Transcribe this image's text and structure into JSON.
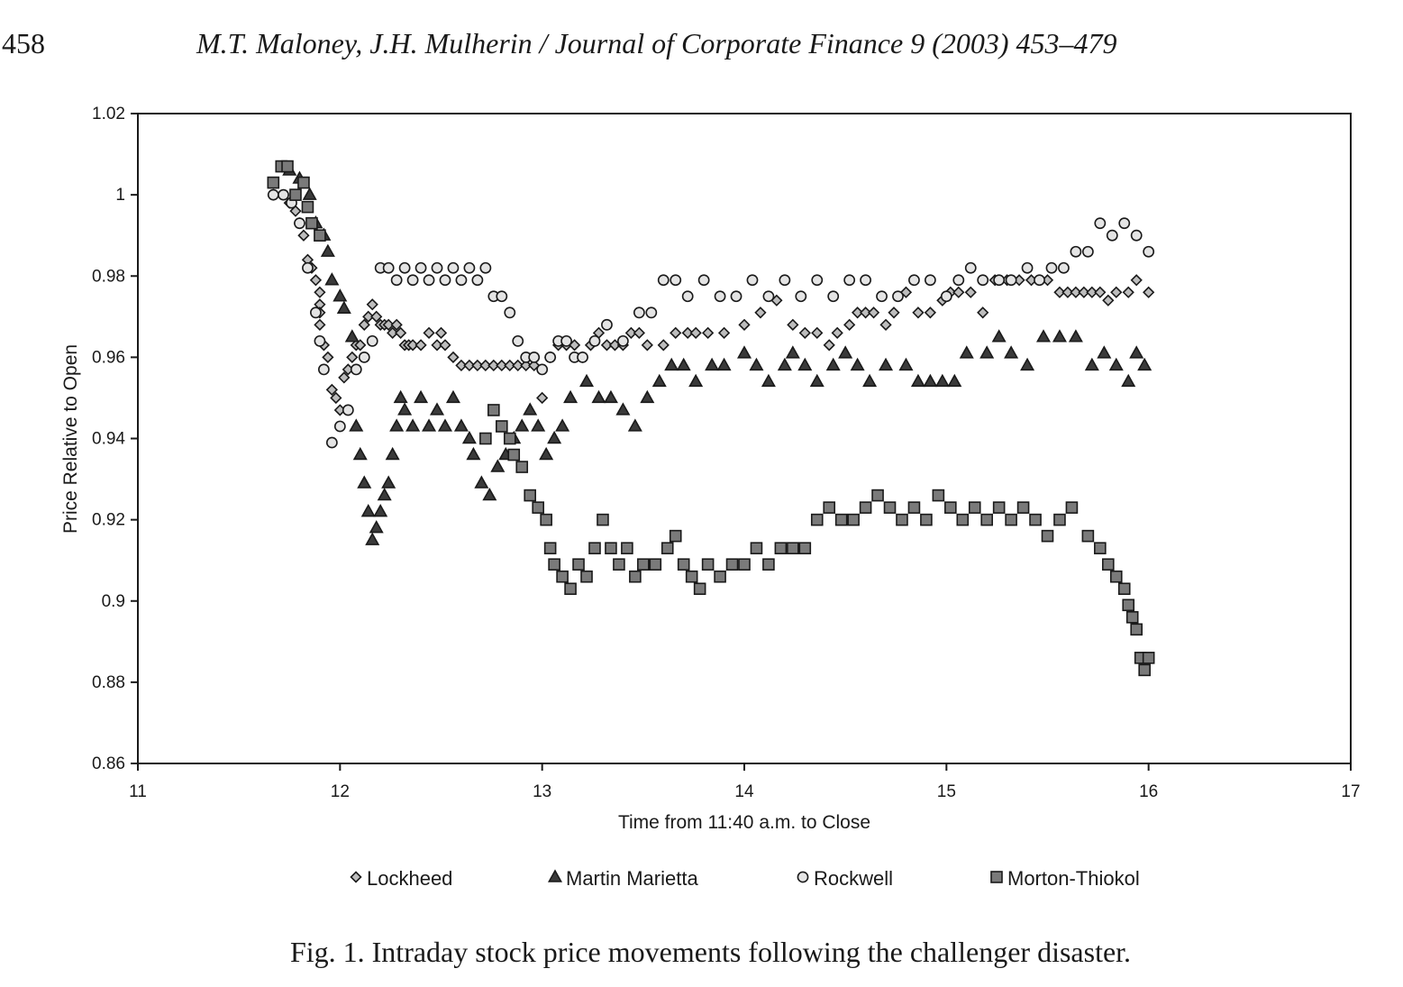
{
  "header": {
    "page_number": "458",
    "running_head": "M.T. Maloney, J.H. Mulherin / Journal of Corporate Finance 9 (2003) 453–479"
  },
  "caption": "Fig. 1. Intraday stock price movements following the challenger disaster.",
  "chart_data": {
    "type": "scatter",
    "xlabel": "Time from 11:40 a.m. to Close",
    "ylabel": "Price Relative to Open",
    "xlim": [
      11,
      17
    ],
    "ylim": [
      0.86,
      1.02
    ],
    "x_ticks": [
      "11",
      "12",
      "13",
      "14",
      "15",
      "16",
      "17"
    ],
    "y_ticks": [
      "0.86",
      "0.88",
      "0.9",
      "0.92",
      "0.94",
      "0.96",
      "0.98",
      "1",
      "1.02"
    ],
    "grid": false,
    "legend_position": "bottom",
    "series": [
      {
        "name": "Lockheed",
        "marker": "diamond",
        "x": [
          11.67,
          11.75,
          11.78,
          11.8,
          11.82,
          11.84,
          11.86,
          11.88,
          11.9,
          11.9,
          11.9,
          11.9,
          11.92,
          11.94,
          11.96,
          11.98,
          12.0,
          12.02,
          12.04,
          12.06,
          12.08,
          12.1,
          12.12,
          12.14,
          12.16,
          12.18,
          12.2,
          12.22,
          12.24,
          12.26,
          12.28,
          12.3,
          12.32,
          12.34,
          12.36,
          12.4,
          12.44,
          12.48,
          12.5,
          12.52,
          12.56,
          12.6,
          12.64,
          12.68,
          12.72,
          12.76,
          12.8,
          12.84,
          12.88,
          12.92,
          12.96,
          13.0,
          13.04,
          13.08,
          13.12,
          13.16,
          13.2,
          13.24,
          13.28,
          13.32,
          13.36,
          13.4,
          13.44,
          13.48,
          13.52,
          13.6,
          13.66,
          13.72,
          13.76,
          13.82,
          13.9,
          14.0,
          14.08,
          14.16,
          14.24,
          14.3,
          14.36,
          14.42,
          14.46,
          14.52,
          14.56,
          14.6,
          14.64,
          14.7,
          14.74,
          14.8,
          14.86,
          14.92,
          14.98,
          15.02,
          15.06,
          15.12,
          15.18,
          15.24,
          15.3,
          15.36,
          15.42,
          15.5,
          15.56,
          15.6,
          15.64,
          15.68,
          15.72,
          15.76,
          15.8,
          15.84,
          15.9,
          15.94,
          16.0
        ],
        "y": [
          1.0,
          0.998,
          0.996,
          0.993,
          0.99,
          0.984,
          0.982,
          0.979,
          0.976,
          0.973,
          0.971,
          0.968,
          0.963,
          0.96,
          0.952,
          0.95,
          0.947,
          0.955,
          0.957,
          0.96,
          0.963,
          0.963,
          0.968,
          0.97,
          0.973,
          0.97,
          0.968,
          0.968,
          0.968,
          0.966,
          0.968,
          0.966,
          0.963,
          0.963,
          0.963,
          0.963,
          0.966,
          0.963,
          0.966,
          0.963,
          0.96,
          0.958,
          0.958,
          0.958,
          0.958,
          0.958,
          0.958,
          0.958,
          0.958,
          0.958,
          0.958,
          0.95,
          0.96,
          0.963,
          0.963,
          0.963,
          0.96,
          0.963,
          0.966,
          0.963,
          0.963,
          0.963,
          0.966,
          0.966,
          0.963,
          0.963,
          0.966,
          0.966,
          0.966,
          0.966,
          0.966,
          0.968,
          0.971,
          0.974,
          0.968,
          0.966,
          0.966,
          0.963,
          0.966,
          0.968,
          0.971,
          0.971,
          0.971,
          0.968,
          0.971,
          0.976,
          0.971,
          0.971,
          0.974,
          0.976,
          0.976,
          0.976,
          0.971,
          0.979,
          0.979,
          0.979,
          0.979,
          0.979,
          0.976,
          0.976,
          0.976,
          0.976,
          0.976,
          0.976,
          0.974,
          0.976,
          0.976,
          0.979,
          0.976
        ]
      },
      {
        "name": "Martin Marietta",
        "marker": "triangle",
        "x": [
          11.75,
          11.8,
          11.85,
          11.88,
          11.92,
          11.94,
          11.96,
          12.0,
          12.02,
          12.06,
          12.08,
          12.1,
          12.12,
          12.14,
          12.16,
          12.18,
          12.2,
          12.22,
          12.24,
          12.26,
          12.28,
          12.3,
          12.32,
          12.36,
          12.4,
          12.44,
          12.48,
          12.52,
          12.56,
          12.6,
          12.64,
          12.66,
          12.7,
          12.74,
          12.78,
          12.82,
          12.86,
          12.9,
          12.94,
          12.98,
          13.02,
          13.06,
          13.1,
          13.14,
          13.22,
          13.28,
          13.34,
          13.4,
          13.46,
          13.52,
          13.58,
          13.64,
          13.7,
          13.76,
          13.84,
          13.9,
          14.0,
          14.06,
          14.12,
          14.2,
          14.24,
          14.3,
          14.36,
          14.44,
          14.5,
          14.56,
          14.62,
          14.7,
          14.8,
          14.86,
          14.92,
          14.98,
          15.04,
          15.1,
          15.2,
          15.26,
          15.32,
          15.4,
          15.48,
          15.56,
          15.64,
          15.72,
          15.78,
          15.84,
          15.9,
          15.94,
          15.98
        ],
        "y": [
          1.006,
          1.004,
          1.0,
          0.993,
          0.99,
          0.986,
          0.979,
          0.975,
          0.972,
          0.965,
          0.943,
          0.936,
          0.929,
          0.922,
          0.915,
          0.918,
          0.922,
          0.926,
          0.929,
          0.936,
          0.943,
          0.95,
          0.947,
          0.943,
          0.95,
          0.943,
          0.947,
          0.943,
          0.95,
          0.943,
          0.94,
          0.936,
          0.929,
          0.926,
          0.933,
          0.936,
          0.94,
          0.943,
          0.947,
          0.943,
          0.936,
          0.94,
          0.943,
          0.95,
          0.954,
          0.95,
          0.95,
          0.947,
          0.943,
          0.95,
          0.954,
          0.958,
          0.958,
          0.954,
          0.958,
          0.958,
          0.961,
          0.958,
          0.954,
          0.958,
          0.961,
          0.958,
          0.954,
          0.958,
          0.961,
          0.958,
          0.954,
          0.958,
          0.958,
          0.954,
          0.954,
          0.954,
          0.954,
          0.961,
          0.961,
          0.965,
          0.961,
          0.958,
          0.965,
          0.965,
          0.965,
          0.958,
          0.961,
          0.958,
          0.954,
          0.961,
          0.958
        ]
      },
      {
        "name": "Rockwell",
        "marker": "circle",
        "x": [
          11.67,
          11.72,
          11.76,
          11.8,
          11.84,
          11.88,
          11.9,
          11.92,
          11.96,
          12.0,
          12.04,
          12.08,
          12.12,
          12.16,
          12.2,
          12.24,
          12.28,
          12.32,
          12.36,
          12.4,
          12.44,
          12.48,
          12.52,
          12.56,
          12.6,
          12.64,
          12.68,
          12.72,
          12.76,
          12.8,
          12.84,
          12.88,
          12.92,
          12.96,
          13.0,
          13.04,
          13.08,
          13.12,
          13.16,
          13.2,
          13.26,
          13.32,
          13.4,
          13.48,
          13.54,
          13.6,
          13.66,
          13.72,
          13.8,
          13.88,
          13.96,
          14.04,
          14.12,
          14.2,
          14.28,
          14.36,
          14.44,
          14.52,
          14.6,
          14.68,
          14.76,
          14.84,
          14.92,
          15.0,
          15.06,
          15.12,
          15.18,
          15.26,
          15.32,
          15.4,
          15.46,
          15.52,
          15.58,
          15.64,
          15.7,
          15.76,
          15.82,
          15.88,
          15.94,
          16.0
        ],
        "y": [
          1.0,
          1.0,
          0.998,
          0.993,
          0.982,
          0.971,
          0.964,
          0.957,
          0.939,
          0.943,
          0.947,
          0.957,
          0.96,
          0.964,
          0.982,
          0.982,
          0.979,
          0.982,
          0.979,
          0.982,
          0.979,
          0.982,
          0.979,
          0.982,
          0.979,
          0.982,
          0.979,
          0.982,
          0.975,
          0.975,
          0.971,
          0.964,
          0.96,
          0.96,
          0.957,
          0.96,
          0.964,
          0.964,
          0.96,
          0.96,
          0.964,
          0.968,
          0.964,
          0.971,
          0.971,
          0.979,
          0.979,
          0.975,
          0.979,
          0.975,
          0.975,
          0.979,
          0.975,
          0.979,
          0.975,
          0.979,
          0.975,
          0.979,
          0.979,
          0.975,
          0.975,
          0.979,
          0.979,
          0.975,
          0.979,
          0.982,
          0.979,
          0.979,
          0.979,
          0.982,
          0.979,
          0.982,
          0.982,
          0.986,
          0.986,
          0.993,
          0.99,
          0.993,
          0.99,
          0.986
        ]
      },
      {
        "name": "Morton-Thiokol",
        "marker": "square",
        "x": [
          11.67,
          11.71,
          11.74,
          11.78,
          11.82,
          11.84,
          11.86,
          11.9,
          12.72,
          12.76,
          12.8,
          12.84,
          12.86,
          12.9,
          12.94,
          12.98,
          13.02,
          13.04,
          13.06,
          13.1,
          13.14,
          13.18,
          13.22,
          13.26,
          13.3,
          13.34,
          13.38,
          13.42,
          13.46,
          13.5,
          13.56,
          13.62,
          13.66,
          13.7,
          13.74,
          13.78,
          13.82,
          13.88,
          13.94,
          14.0,
          14.06,
          14.12,
          14.18,
          14.24,
          14.3,
          14.36,
          14.42,
          14.48,
          14.54,
          14.6,
          14.66,
          14.72,
          14.78,
          14.84,
          14.9,
          14.96,
          15.02,
          15.08,
          15.14,
          15.2,
          15.26,
          15.32,
          15.38,
          15.44,
          15.5,
          15.56,
          15.62,
          15.7,
          15.76,
          15.8,
          15.84,
          15.88,
          15.9,
          15.92,
          15.94,
          15.96,
          15.98,
          16.0
        ],
        "y": [
          1.003,
          1.007,
          1.007,
          1.0,
          1.003,
          0.997,
          0.993,
          0.99,
          0.94,
          0.947,
          0.943,
          0.94,
          0.936,
          0.933,
          0.926,
          0.923,
          0.92,
          0.913,
          0.909,
          0.906,
          0.903,
          0.909,
          0.906,
          0.913,
          0.92,
          0.913,
          0.909,
          0.913,
          0.906,
          0.909,
          0.909,
          0.913,
          0.916,
          0.909,
          0.906,
          0.903,
          0.909,
          0.906,
          0.909,
          0.909,
          0.913,
          0.909,
          0.913,
          0.913,
          0.913,
          0.92,
          0.923,
          0.92,
          0.92,
          0.923,
          0.926,
          0.923,
          0.92,
          0.923,
          0.92,
          0.926,
          0.923,
          0.92,
          0.923,
          0.92,
          0.923,
          0.92,
          0.923,
          0.92,
          0.916,
          0.92,
          0.923,
          0.916,
          0.913,
          0.909,
          0.906,
          0.903,
          0.899,
          0.896,
          0.893,
          0.886,
          0.883,
          0.886
        ]
      }
    ]
  }
}
